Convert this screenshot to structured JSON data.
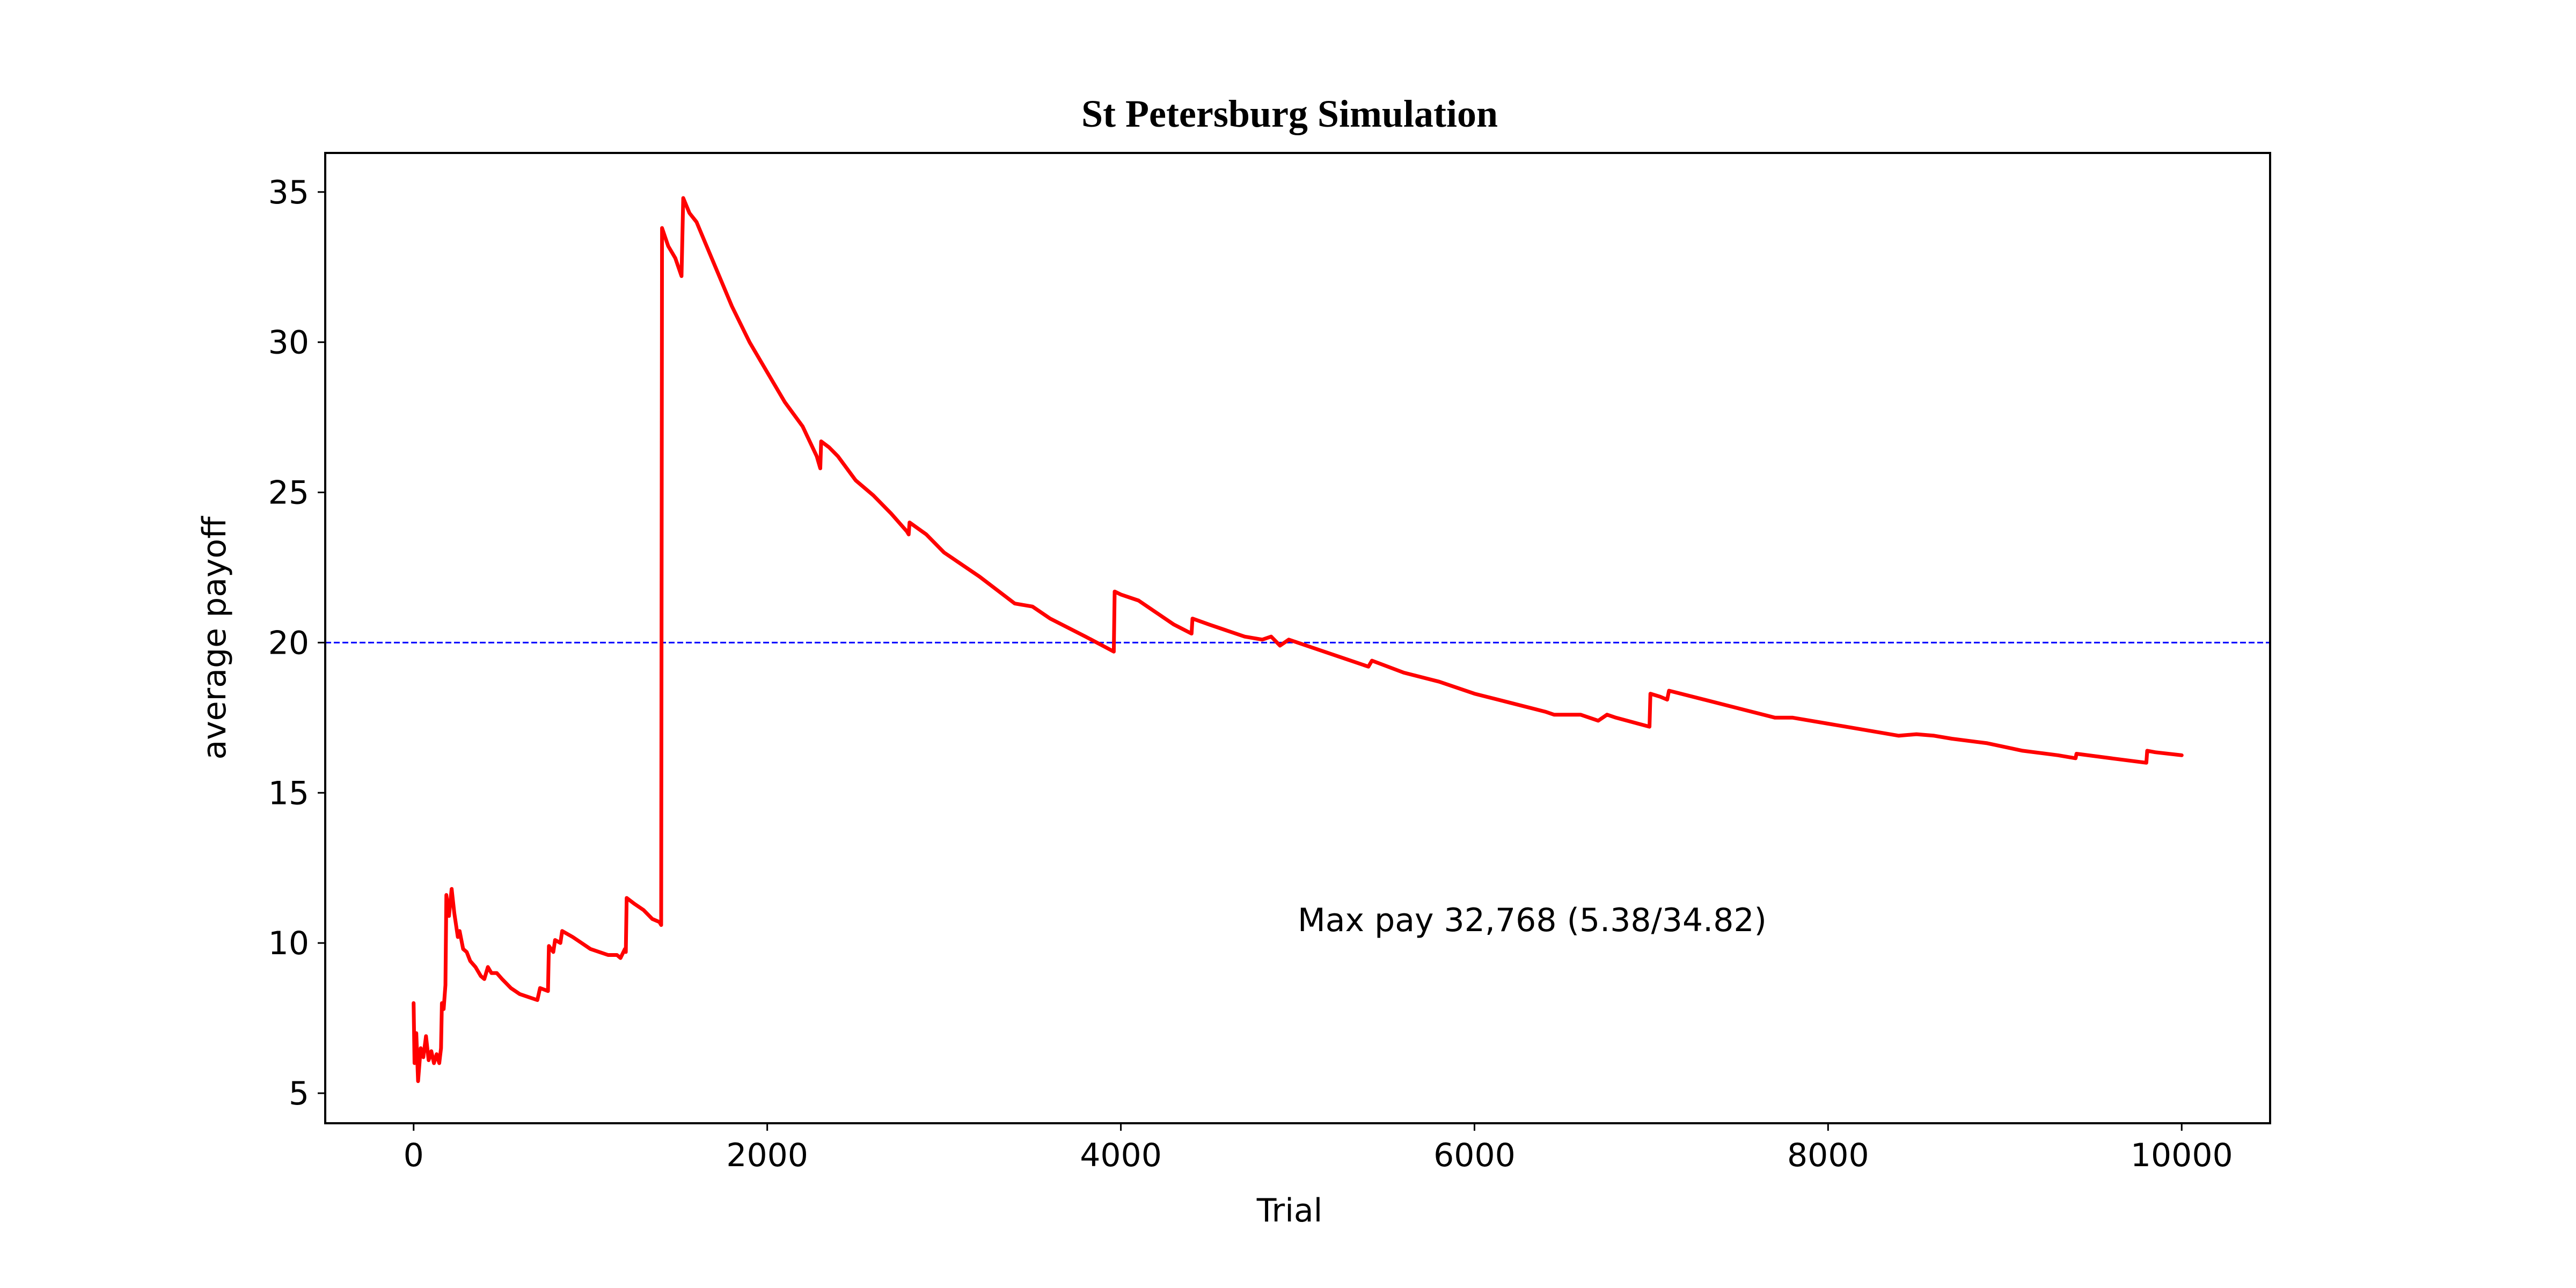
{
  "chart_data": {
    "type": "line",
    "title": "St Petersburg Simulation",
    "xlabel": "Trial",
    "ylabel": "average payoff",
    "xlim": [
      -500,
      10500
    ],
    "ylim": [
      4,
      36.3
    ],
    "xticks": [
      0,
      2000,
      4000,
      6000,
      8000,
      10000
    ],
    "yticks": [
      5,
      10,
      15,
      20,
      25,
      30,
      35
    ],
    "grid": false,
    "legend": "none",
    "reference_line": {
      "y": 20,
      "color": "#0000ff",
      "style": "dashed"
    },
    "annotation": {
      "text": "Max pay 32,768 (5.38/34.82)",
      "x": 5000,
      "y": 10.4
    },
    "series": [
      {
        "color": "#ff0000",
        "points": [
          [
            0,
            8.0
          ],
          [
            5,
            6.0
          ],
          [
            15,
            7.0
          ],
          [
            25,
            5.4
          ],
          [
            40,
            6.5
          ],
          [
            55,
            6.2
          ],
          [
            70,
            6.9
          ],
          [
            85,
            6.1
          ],
          [
            100,
            6.4
          ],
          [
            115,
            6.0
          ],
          [
            130,
            6.3
          ],
          [
            145,
            6.0
          ],
          [
            155,
            6.5
          ],
          [
            160,
            8.0
          ],
          [
            170,
            7.8
          ],
          [
            180,
            8.6
          ],
          [
            185,
            11.6
          ],
          [
            200,
            10.9
          ],
          [
            215,
            11.8
          ],
          [
            230,
            11.0
          ],
          [
            250,
            10.2
          ],
          [
            260,
            10.4
          ],
          [
            280,
            9.8
          ],
          [
            300,
            9.7
          ],
          [
            320,
            9.4
          ],
          [
            350,
            9.2
          ],
          [
            380,
            8.9
          ],
          [
            400,
            8.8
          ],
          [
            420,
            9.2
          ],
          [
            440,
            9.0
          ],
          [
            470,
            9.0
          ],
          [
            500,
            8.8
          ],
          [
            550,
            8.5
          ],
          [
            600,
            8.3
          ],
          [
            650,
            8.2
          ],
          [
            700,
            8.1
          ],
          [
            715,
            8.5
          ],
          [
            760,
            8.4
          ],
          [
            765,
            9.9
          ],
          [
            790,
            9.7
          ],
          [
            800,
            10.1
          ],
          [
            830,
            10.0
          ],
          [
            840,
            10.4
          ],
          [
            900,
            10.2
          ],
          [
            950,
            10.0
          ],
          [
            1000,
            9.8
          ],
          [
            1050,
            9.7
          ],
          [
            1100,
            9.6
          ],
          [
            1150,
            9.6
          ],
          [
            1170,
            9.5
          ],
          [
            1195,
            9.8
          ],
          [
            1200,
            9.7
          ],
          [
            1205,
            11.5
          ],
          [
            1250,
            11.3
          ],
          [
            1300,
            11.1
          ],
          [
            1350,
            10.8
          ],
          [
            1390,
            10.7
          ],
          [
            1400,
            10.6
          ],
          [
            1405,
            33.8
          ],
          [
            1440,
            33.2
          ],
          [
            1480,
            32.8
          ],
          [
            1515,
            32.2
          ],
          [
            1525,
            34.8
          ],
          [
            1560,
            34.3
          ],
          [
            1600,
            34.0
          ],
          [
            1650,
            33.3
          ],
          [
            1700,
            32.6
          ],
          [
            1800,
            31.2
          ],
          [
            1900,
            30.0
          ],
          [
            2000,
            29.0
          ],
          [
            2100,
            28.0
          ],
          [
            2200,
            27.2
          ],
          [
            2280,
            26.2
          ],
          [
            2300,
            25.8
          ],
          [
            2305,
            26.7
          ],
          [
            2350,
            26.5
          ],
          [
            2400,
            26.2
          ],
          [
            2500,
            25.4
          ],
          [
            2600,
            24.9
          ],
          [
            2700,
            24.3
          ],
          [
            2790,
            23.7
          ],
          [
            2800,
            23.6
          ],
          [
            2805,
            24.0
          ],
          [
            2900,
            23.6
          ],
          [
            3000,
            23.0
          ],
          [
            3200,
            22.2
          ],
          [
            3400,
            21.3
          ],
          [
            3500,
            21.2
          ],
          [
            3600,
            20.8
          ],
          [
            3800,
            20.2
          ],
          [
            3960,
            19.7
          ],
          [
            3965,
            21.7
          ],
          [
            4000,
            21.6
          ],
          [
            4100,
            21.4
          ],
          [
            4200,
            21.0
          ],
          [
            4300,
            20.6
          ],
          [
            4400,
            20.3
          ],
          [
            4405,
            20.8
          ],
          [
            4500,
            20.6
          ],
          [
            4700,
            20.2
          ],
          [
            4800,
            20.1
          ],
          [
            4850,
            20.2
          ],
          [
            4900,
            19.9
          ],
          [
            4950,
            20.1
          ],
          [
            5000,
            20.0
          ],
          [
            5200,
            19.6
          ],
          [
            5400,
            19.2
          ],
          [
            5420,
            19.4
          ],
          [
            5600,
            19.0
          ],
          [
            5800,
            18.7
          ],
          [
            6000,
            18.3
          ],
          [
            6200,
            18.0
          ],
          [
            6400,
            17.7
          ],
          [
            6450,
            17.6
          ],
          [
            6600,
            17.6
          ],
          [
            6700,
            17.4
          ],
          [
            6750,
            17.6
          ],
          [
            6800,
            17.5
          ],
          [
            6990,
            17.2
          ],
          [
            6995,
            18.3
          ],
          [
            7050,
            18.2
          ],
          [
            7090,
            18.1
          ],
          [
            7100,
            18.4
          ],
          [
            7300,
            18.1
          ],
          [
            7500,
            17.8
          ],
          [
            7700,
            17.5
          ],
          [
            7800,
            17.5
          ],
          [
            8000,
            17.3
          ],
          [
            8200,
            17.1
          ],
          [
            8400,
            16.9
          ],
          [
            8500,
            16.95
          ],
          [
            8600,
            16.9
          ],
          [
            8700,
            16.8
          ],
          [
            8900,
            16.65
          ],
          [
            9100,
            16.4
          ],
          [
            9300,
            16.25
          ],
          [
            9400,
            16.15
          ],
          [
            9405,
            16.3
          ],
          [
            9600,
            16.15
          ],
          [
            9800,
            16.0
          ],
          [
            9805,
            16.4
          ],
          [
            9850,
            16.35
          ],
          [
            10000,
            16.25
          ]
        ]
      }
    ]
  }
}
